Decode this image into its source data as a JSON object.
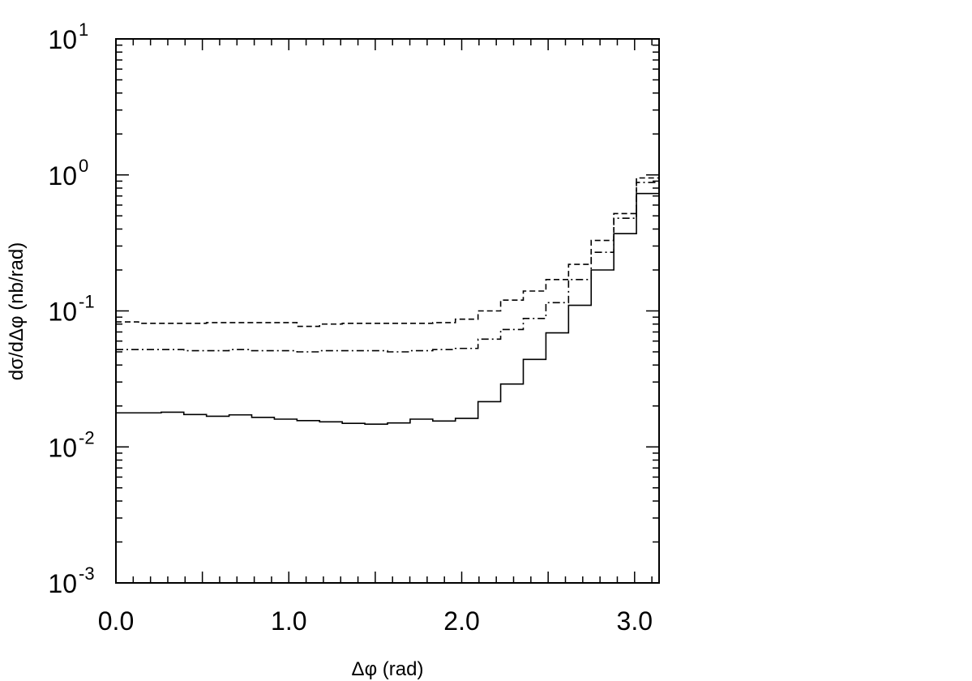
{
  "chart_data": {
    "type": "line",
    "drawstyle": "steps",
    "title": "",
    "xlabel": "Δφ  (rad)",
    "ylabel": "dσ/dΔφ  (nb/rad)",
    "xlim": [
      0,
      3.1416
    ],
    "ylim": [
      0.001,
      10
    ],
    "yscale": "log",
    "grid": false,
    "x_tick_labels": [
      {
        "value": 0.0,
        "text": "0.0"
      },
      {
        "value": 1.0,
        "text": "1.0"
      },
      {
        "value": 2.0,
        "text": "2.0"
      },
      {
        "value": 3.0,
        "text": "3.0"
      }
    ],
    "y_tick_labels": [
      {
        "value": 10,
        "mantissa": "10",
        "exponent": "1"
      },
      {
        "value": 1,
        "mantissa": "10",
        "exponent": "0"
      },
      {
        "value": 0.1,
        "mantissa": "10",
        "exponent": "-1"
      },
      {
        "value": 0.01,
        "mantissa": "10",
        "exponent": "-2"
      },
      {
        "value": 0.001,
        "mantissa": "10",
        "exponent": "-3"
      }
    ],
    "bin_edges": [
      0,
      0.1309,
      0.2618,
      0.3927,
      0.5236,
      0.6545,
      0.7854,
      0.9163,
      1.0472,
      1.1781,
      1.309,
      1.4399,
      1.5708,
      1.7017,
      1.8326,
      1.9635,
      2.0944,
      2.2253,
      2.3562,
      2.4871,
      2.618,
      2.7489,
      2.8798,
      3.0107,
      3.1416
    ],
    "series": [
      {
        "style": "solid",
        "values": [
          0.0178,
          0.0178,
          0.018,
          0.0173,
          0.0168,
          0.0172,
          0.0165,
          0.016,
          0.0156,
          0.0153,
          0.0149,
          0.0147,
          0.015,
          0.016,
          0.0155,
          0.0162,
          0.0215,
          0.029,
          0.044,
          0.069,
          0.11,
          0.2,
          0.37,
          0.73,
          1.2
        ]
      },
      {
        "style": "dashed",
        "values": [
          0.083,
          0.081,
          0.081,
          0.081,
          0.082,
          0.082,
          0.082,
          0.082,
          0.077,
          0.08,
          0.081,
          0.081,
          0.081,
          0.081,
          0.082,
          0.087,
          0.1,
          0.12,
          0.14,
          0.17,
          0.22,
          0.33,
          0.52,
          0.95,
          2.2
        ]
      },
      {
        "style": "dashdot",
        "values": [
          0.052,
          0.052,
          0.052,
          0.051,
          0.051,
          0.052,
          0.051,
          0.051,
          0.05,
          0.051,
          0.051,
          0.051,
          0.05,
          0.051,
          0.052,
          0.053,
          0.062,
          0.073,
          0.088,
          0.115,
          0.17,
          0.27,
          0.48,
          0.88,
          1.6
        ]
      }
    ]
  }
}
